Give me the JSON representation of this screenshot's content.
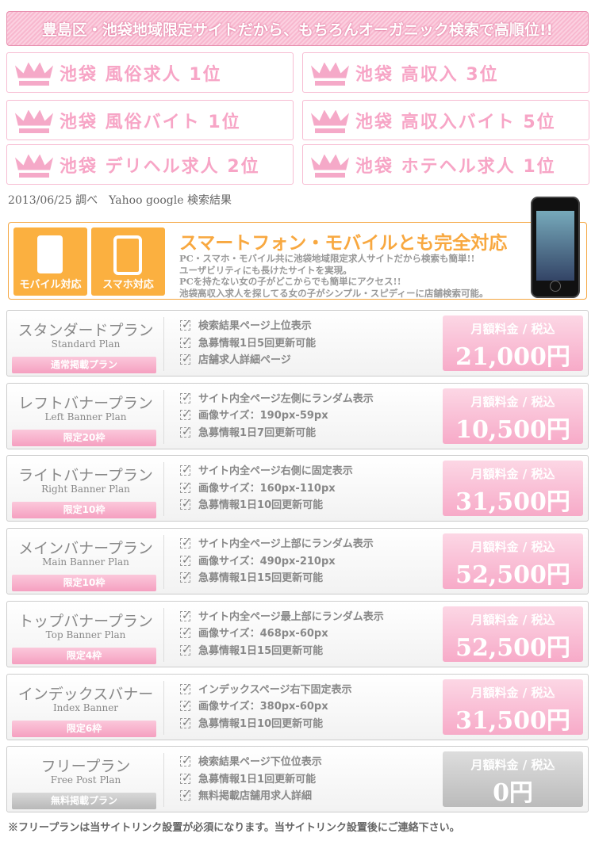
{
  "banner": "豊島区・池袋地域限定サイトだから、もちろんオーガニック検索で高順位!!",
  "ranks": [
    "池袋 風俗求人 1位",
    "池袋 高収入 3位",
    "池袋 風俗バイト 1位",
    "池袋 高収入バイト 5位",
    "池袋 デリヘル求人 2位",
    "池袋 ホテヘル求人 1位"
  ],
  "date_note": "2013/06/25 調べ　Yahoo google 検索結果",
  "mobile": {
    "tile1": "モバイル対応",
    "tile2": "スマホ対応",
    "heading": "スマートフォン・モバイルとも完全対応",
    "lines": [
      "PC・スマホ・モバイル共に池袋地域限定求人サイトだから検索も簡単!!",
      "ユーザビリティにも長けたサイトを実現。",
      "PCを持たない女の子がどこからでも簡単にアクセス!!",
      "池袋高収入求人を探してる女の子がシンプル・スピディーに店舗検索可能。"
    ]
  },
  "colors": {
    "pink": "#f7a5c6",
    "orange": "#fbb040",
    "gray": "#bbbbbb"
  },
  "price_label": "月額料金 / 税込",
  "plans": [
    {
      "title": "スタンダードプラン",
      "sub": "Standard Plan",
      "pill": "通常掲載プラン",
      "features": [
        "検索結果ページ上位表示",
        "急募情報1日5回更新可能",
        "店舗求人詳細ページ"
      ],
      "price": "21,000円"
    },
    {
      "title": "レフトバナープラン",
      "sub": "Left Banner Plan",
      "pill": "限定20枠",
      "features": [
        "サイト内全ページ左側にランダム表示",
        "画像サイズ：190px-59px",
        "急募情報1日7回更新可能"
      ],
      "price": "10,500円"
    },
    {
      "title": "ライトバナープラン",
      "sub": "Right Banner Plan",
      "pill": "限定10枠",
      "features": [
        "サイト内全ページ右側に固定表示",
        "画像サイズ：160px-110px",
        "急募情報1日10回更新可能"
      ],
      "price": "31,500円"
    },
    {
      "title": "メインバナープラン",
      "sub": "Main Banner Plan",
      "pill": "限定10枠",
      "features": [
        "サイト内全ページ上部にランダム表示",
        "画像サイズ：490px-210px",
        "急募情報1日15回更新可能"
      ],
      "price": "52,500円"
    },
    {
      "title": "トップバナープラン",
      "sub": "Top Banner Plan",
      "pill": "限定4枠",
      "features": [
        "サイト内全ページ最上部にランダム表示",
        "画像サイズ：468px-60px",
        "急募情報1日15回更新可能"
      ],
      "price": "52,500円"
    },
    {
      "title": "インデックスバナー",
      "sub": "Index Banner",
      "pill": "限定6枠",
      "features": [
        "インデックスページ右下固定表示",
        "画像サイズ：380px-60px",
        "急募情報1日10回更新可能"
      ],
      "price": "31,500円"
    },
    {
      "title": "フリープラン",
      "sub": "Free Post Plan",
      "pill": "無料掲載プラン",
      "features": [
        "検索結果ページ下位位表示",
        "急募情報1日1回更新可能",
        "無料掲載店舗用求人詳細"
      ],
      "price": "0円",
      "free": true
    }
  ],
  "footnote": "※フリープランは当サイトリンク設置が必須になります。当サイトリンク設置後にご連絡下さい。"
}
